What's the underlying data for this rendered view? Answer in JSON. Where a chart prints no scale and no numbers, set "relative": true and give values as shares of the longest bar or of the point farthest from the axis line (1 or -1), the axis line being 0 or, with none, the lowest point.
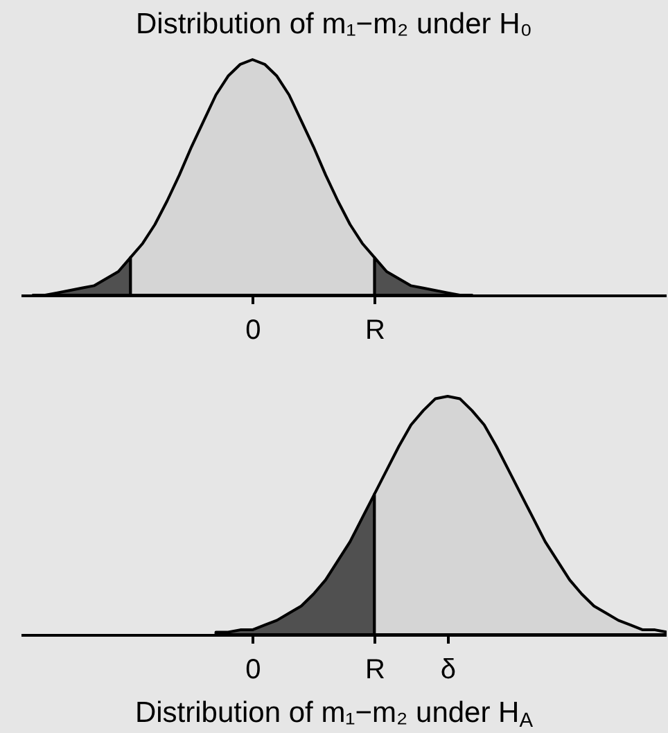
{
  "chart_data": [
    {
      "type": "area",
      "title": "Distribution of m₁−m₂ under H₀",
      "relative": true,
      "categories": [
        null,
        null,
        null,
        null,
        null,
        null,
        null,
        null,
        null,
        null,
        null,
        null,
        null,
        null,
        null,
        null,
        null,
        null,
        null,
        "0",
        null,
        null,
        null,
        null,
        null,
        null,
        null,
        null,
        null,
        "R",
        null,
        null,
        null,
        null,
        null,
        null,
        null,
        null,
        null,
        null,
        null,
        null,
        null,
        null,
        null,
        null,
        null,
        null,
        null,
        null,
        null,
        null,
        null,
        null
      ],
      "series": [
        {
          "color": "#505050",
          "values": [
            null,
            0,
            0,
            0.01,
            0.02,
            0.03,
            0.04,
            0.07,
            0.1,
            0.16,
            null,
            null,
            null,
            null,
            null,
            null,
            null,
            null,
            null,
            null,
            null,
            null,
            null,
            null,
            null,
            null,
            null,
            null,
            null,
            0.16,
            0.1,
            0.07,
            0.04,
            0.03,
            0.02,
            0.01,
            0,
            0,
            null,
            null,
            null,
            null,
            null,
            null,
            null,
            null,
            null,
            null,
            null,
            null,
            null,
            null,
            null,
            null
          ]
        },
        {
          "color": "#d5d5d5",
          "values": [
            null,
            null,
            null,
            null,
            null,
            null,
            null,
            null,
            null,
            0.16,
            0.22,
            0.3,
            0.4,
            0.51,
            0.63,
            0.74,
            0.85,
            0.93,
            0.98,
            1,
            0.98,
            0.93,
            0.85,
            0.74,
            0.63,
            0.51,
            0.4,
            0.3,
            0.22,
            0.16,
            null,
            null,
            null,
            null,
            null,
            null,
            null,
            null,
            null,
            null,
            null,
            null,
            null,
            null,
            null,
            null,
            null,
            null,
            null,
            null,
            null,
            null,
            null,
            null
          ]
        }
      ]
    },
    {
      "type": "area",
      "xlabel": "Distribution of m₁−m₂ under H$_{A}$",
      "relative": true,
      "categories": [
        null,
        null,
        null,
        null,
        null,
        null,
        null,
        null,
        null,
        null,
        null,
        null,
        null,
        null,
        null,
        null,
        null,
        null,
        null,
        "0",
        null,
        null,
        null,
        null,
        null,
        null,
        null,
        null,
        null,
        "R",
        null,
        null,
        null,
        null,
        null,
        "δ",
        null,
        null,
        null,
        null,
        null,
        null,
        null,
        null,
        null,
        null,
        null,
        null,
        null,
        null,
        null,
        null,
        null,
        null
      ],
      "series": [
        {
          "color": "#505050",
          "values": [
            null,
            null,
            null,
            null,
            null,
            null,
            null,
            null,
            null,
            null,
            null,
            null,
            null,
            null,
            null,
            null,
            0.01,
            0.01,
            0.02,
            0.02,
            0.04,
            0.06,
            0.09,
            0.12,
            0.17,
            0.23,
            0.31,
            0.39,
            0.49,
            0.59,
            null,
            null,
            null,
            null,
            null,
            null,
            null,
            null,
            null,
            null,
            null,
            null,
            null,
            null,
            null,
            null,
            null,
            null,
            null,
            null,
            null,
            null,
            null,
            null
          ]
        },
        {
          "color": "#d5d5d5",
          "values": [
            null,
            null,
            null,
            null,
            null,
            null,
            null,
            null,
            null,
            null,
            null,
            null,
            null,
            null,
            null,
            null,
            null,
            null,
            null,
            null,
            null,
            null,
            null,
            null,
            null,
            null,
            null,
            null,
            null,
            0.59,
            0.69,
            0.79,
            0.88,
            0.94,
            0.99,
            1,
            0.99,
            0.94,
            0.88,
            0.79,
            0.69,
            0.59,
            0.49,
            0.39,
            0.31,
            0.23,
            0.17,
            0.12,
            0.09,
            0.06,
            0.04,
            0.02,
            0.02,
            0.01
          ]
        }
      ]
    }
  ]
}
